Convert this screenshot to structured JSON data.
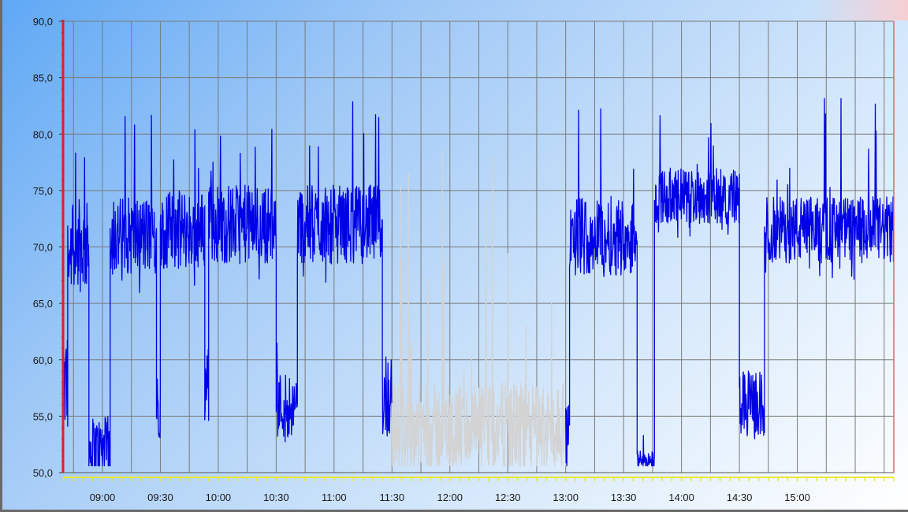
{
  "chart_data": {
    "type": "line",
    "xlabel": "",
    "ylabel": "",
    "ylim": [
      50,
      90
    ],
    "xlim": [
      "08:40",
      "15:50"
    ],
    "y_ticks": [
      "50,0",
      "55,0",
      "60,0",
      "65,0",
      "70,0",
      "75,0",
      "80,0",
      "85,0",
      "90,0"
    ],
    "x_ticks": [
      "09:00",
      "09:30",
      "10:00",
      "10:30",
      "11:00",
      "11:30",
      "12:00",
      "12:30",
      "13:00",
      "13:30",
      "14:00",
      "14:30",
      "15:00"
    ],
    "grid": true,
    "colors": {
      "active": "#0000e6",
      "inactive": "#d3d3d3",
      "axis_marker": "#e02020",
      "ticks": "#e8e830"
    },
    "series": [
      {
        "color": "#0000e6",
        "segments": [
          {
            "start": "08:40",
            "end": "08:42",
            "level": 58,
            "noise": 5
          },
          {
            "start": "08:42",
            "end": "08:53",
            "level": 70,
            "noise": 4,
            "spike_max": 83
          },
          {
            "start": "08:53",
            "end": "09:04",
            "level": 52,
            "noise": 3,
            "spike_max": 65
          },
          {
            "start": "09:04",
            "end": "09:28",
            "level": 71,
            "noise": 3.5,
            "spike_max": 82
          },
          {
            "start": "09:28",
            "end": "09:30",
            "level": 56,
            "noise": 3
          },
          {
            "start": "09:30",
            "end": "09:53",
            "level": 71.5,
            "noise": 3.5,
            "spike_max": 82
          },
          {
            "start": "09:53",
            "end": "09:55",
            "level": 58,
            "noise": 4
          },
          {
            "start": "09:55",
            "end": "10:30",
            "level": 72,
            "noise": 3.5,
            "spike_max": 81
          },
          {
            "start": "10:30",
            "end": "10:41",
            "level": 56,
            "noise": 3,
            "spike_max": 62
          },
          {
            "start": "10:41",
            "end": "11:25",
            "level": 72,
            "noise": 3.5,
            "spike_max": 83
          },
          {
            "start": "11:25",
            "end": "11:30",
            "level": 57,
            "noise": 4,
            "spike_max": 70
          }
        ]
      },
      {
        "color": "#d3d3d3",
        "segments": [
          {
            "start": "11:30",
            "end": "13:00",
            "level": 54,
            "noise": 4,
            "spike_max": 84
          }
        ]
      },
      {
        "color": "#0000e6",
        "segments": [
          {
            "start": "13:00",
            "end": "13:02",
            "level": 53,
            "noise": 3
          },
          {
            "start": "13:02",
            "end": "13:37",
            "level": 71,
            "noise": 3.5,
            "spike_max": 88
          },
          {
            "start": "13:37",
            "end": "13:46",
            "level": 51,
            "noise": 1,
            "spike_max": 56
          },
          {
            "start": "13:46",
            "end": "14:30",
            "level": 74.5,
            "noise": 2.5,
            "spike_max": 82
          },
          {
            "start": "14:30",
            "end": "14:43",
            "level": 56,
            "noise": 3,
            "spike_max": 62
          },
          {
            "start": "14:43",
            "end": "15:50",
            "level": 71.5,
            "noise": 3,
            "spike_max": 84
          }
        ]
      }
    ]
  }
}
